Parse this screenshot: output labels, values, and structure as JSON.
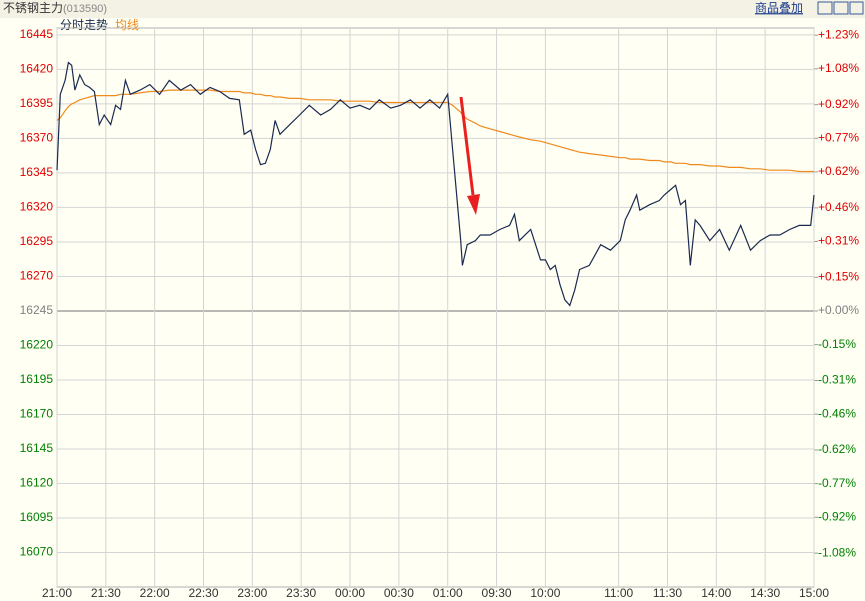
{
  "header": {
    "title": "不锈钢主力",
    "code": "(013590)",
    "link": "商品叠加"
  },
  "chart_data": {
    "type": "line",
    "legend": [
      "分时走势",
      "均线"
    ],
    "x": [
      0,
      2,
      5,
      7,
      9,
      11,
      14,
      17,
      20,
      23,
      26,
      29,
      33,
      36,
      39,
      42,
      45,
      51,
      57,
      63,
      69,
      76,
      82,
      88,
      94,
      100,
      106,
      112,
      115,
      119,
      122,
      125,
      128,
      131,
      134,
      137,
      143,
      149,
      155,
      162,
      168,
      174,
      180,
      186,
      192,
      198,
      205,
      211,
      217,
      223,
      229,
      235,
      240,
      243,
      245,
      248,
      249,
      252,
      257,
      260,
      266,
      272,
      278,
      281,
      284,
      291,
      297,
      300,
      303,
      306,
      309,
      312,
      315,
      318,
      321,
      327,
      334,
      340,
      346,
      349,
      352,
      356,
      358,
      364,
      370,
      373,
      377,
      380,
      383,
      386,
      389,
      392,
      395,
      401,
      407,
      413,
      420,
      426,
      432,
      438,
      444,
      450,
      456,
      463,
      465
    ],
    "series": [
      {
        "name": "分时走势",
        "color": "#1a2a50",
        "values": [
          16347,
          16402,
          16412,
          16425,
          16423,
          16405,
          16416,
          16409,
          16407,
          16404,
          16380,
          16387,
          16380,
          16394,
          16391,
          16412,
          16402,
          16405,
          16409,
          16402,
          16412,
          16405,
          16409,
          16402,
          16407,
          16404,
          16399,
          16398,
          16373,
          16376,
          16362,
          16351,
          16352,
          16362,
          16383,
          16373,
          16380,
          16387,
          16394,
          16387,
          16391,
          16398,
          16392,
          16394,
          16391,
          16398,
          16392,
          16394,
          16398,
          16392,
          16398,
          16392,
          16402,
          16362,
          16336,
          16296,
          16278,
          16293,
          16296,
          16300,
          16300,
          16304,
          16307,
          16315,
          16296,
          16304,
          16282,
          16282,
          16275,
          16278,
          16264,
          16253,
          16249,
          16260,
          16275,
          16278,
          16293,
          16289,
          16296,
          16311,
          16318,
          16329,
          16318,
          16322,
          16325,
          16329,
          16333,
          16336,
          16322,
          16325,
          16278,
          16311,
          16307,
          16296,
          16304,
          16289,
          16307,
          16289,
          16296,
          16300,
          16300,
          16304,
          16307,
          16307,
          16329
        ]
      },
      {
        "name": "均线",
        "color": "#f08a1c",
        "values": [
          16383,
          16385,
          16390,
          16393,
          16395,
          16396,
          16398,
          16399,
          16400,
          16401,
          16401,
          16401,
          16401,
          16401,
          16402,
          16402,
          16402,
          16403,
          16404,
          16404,
          16405,
          16405,
          16405,
          16405,
          16405,
          16404,
          16404,
          16404,
          16403,
          16403,
          16402,
          16402,
          16401,
          16401,
          16400,
          16400,
          16399,
          16399,
          16398,
          16398,
          16398,
          16397,
          16397,
          16397,
          16397,
          16396,
          16396,
          16396,
          16396,
          16396,
          16396,
          16396,
          16396,
          16394,
          16392,
          16389,
          16387,
          16384,
          16381,
          16379,
          16377,
          16375,
          16373,
          16372,
          16371,
          16369,
          16368,
          16367,
          16366,
          16365,
          16364,
          16363,
          16362,
          16361,
          16360,
          16359,
          16358,
          16357,
          16356,
          16356,
          16355,
          16355,
          16355,
          16354,
          16354,
          16353,
          16353,
          16352,
          16352,
          16352,
          16351,
          16351,
          16351,
          16350,
          16350,
          16349,
          16349,
          16348,
          16348,
          16347,
          16347,
          16347,
          16346,
          16346,
          16346
        ]
      }
    ],
    "xlim": [
      0,
      465
    ],
    "xticks": [
      {
        "value": 0,
        "label": "21:00"
      },
      {
        "value": 30,
        "label": "21:30"
      },
      {
        "value": 60,
        "label": "22:00"
      },
      {
        "value": 90,
        "label": "22:30"
      },
      {
        "value": 120,
        "label": "23:00"
      },
      {
        "value": 150,
        "label": "23:30"
      },
      {
        "value": 180,
        "label": "00:00"
      },
      {
        "value": 210,
        "label": "00:30"
      },
      {
        "value": 240,
        "label": "01:00"
      },
      {
        "value": 270,
        "label": "09:30"
      },
      {
        "value": 300,
        "label": "10:00"
      },
      {
        "value": 345,
        "label": "11:00"
      },
      {
        "value": 375,
        "label": "11:30"
      },
      {
        "value": 405,
        "label": "14:00"
      },
      {
        "value": 435,
        "label": "14:30"
      },
      {
        "value": 465,
        "label": "15:00"
      }
    ],
    "ylim": [
      16045,
      16450
    ],
    "yticks": [
      16445,
      16420,
      16395,
      16370,
      16345,
      16320,
      16295,
      16270,
      16245,
      16220,
      16195,
      16170,
      16145,
      16120,
      16095,
      16070
    ],
    "y2lim": [
      -1.231,
      1.262
    ],
    "y2ticks": [
      {
        "value": 1.23,
        "label": "+1.23%"
      },
      {
        "value": 1.08,
        "label": "+1.08%"
      },
      {
        "value": 0.92,
        "label": "+0.92%"
      },
      {
        "value": 0.77,
        "label": "+0.77%"
      },
      {
        "value": 0.62,
        "label": "+0.62%"
      },
      {
        "value": 0.46,
        "label": "+0.46%"
      },
      {
        "value": 0.31,
        "label": "+0.31%"
      },
      {
        "value": 0.15,
        "label": "+0.15%"
      },
      {
        "value": 0,
        "label": "+0.00%"
      },
      {
        "value": -0.15,
        "label": "-0.15%"
      },
      {
        "value": -0.31,
        "label": "-0.31%"
      },
      {
        "value": -0.46,
        "label": "-0.46%"
      },
      {
        "value": -0.62,
        "label": "-0.62%"
      },
      {
        "value": -0.77,
        "label": "-0.77%"
      },
      {
        "value": -0.92,
        "label": "-0.92%"
      },
      {
        "value": -1.08,
        "label": "-1.08%"
      }
    ],
    "grid": true,
    "up_color": "#e00000",
    "down_color": "#008000",
    "flat_color": "#808080"
  }
}
